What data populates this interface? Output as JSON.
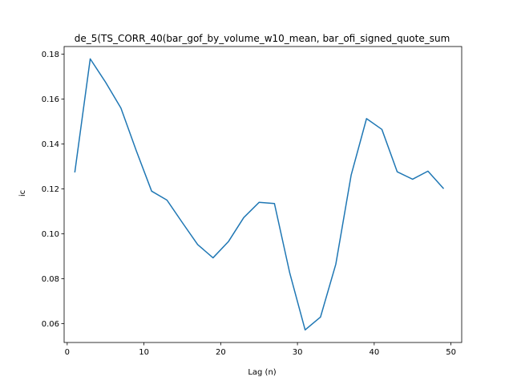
{
  "chart_data": {
    "type": "line",
    "title": "de_5(TS_CORR_40(bar_gof_by_volume_w10_mean, bar_ofi_signed_quote_sum",
    "xlabel": "Lag (n)",
    "ylabel": "ic",
    "xlim": [
      -0.4,
      51.4
    ],
    "ylim": [
      0.0516,
      0.1834
    ],
    "x_ticks": [
      0,
      10,
      20,
      30,
      40,
      50
    ],
    "y_ticks": [
      0.06,
      0.08,
      0.1,
      0.12,
      0.14,
      0.16,
      0.18
    ],
    "x_tick_labels": [
      "0",
      "10",
      "20",
      "30",
      "40",
      "50"
    ],
    "y_tick_labels": [
      "0.06",
      "0.08",
      "0.10",
      "0.12",
      "0.14",
      "0.16",
      "0.18"
    ],
    "grid": false,
    "line_color": "#1f77b4",
    "series": [
      {
        "x": [
          1,
          3,
          5,
          7,
          9,
          11,
          13,
          15,
          17,
          19,
          21,
          23,
          25,
          27,
          29,
          31,
          33,
          35,
          37,
          39,
          41,
          43,
          45,
          47,
          49
        ],
        "values": [
          0.1276,
          0.1779,
          0.1675,
          0.156,
          0.137,
          0.119,
          0.115,
          0.105,
          0.0952,
          0.0893,
          0.0965,
          0.1072,
          0.114,
          0.1135,
          0.0825,
          0.0572,
          0.0629,
          0.0865,
          0.1262,
          0.1513,
          0.1465,
          0.1276,
          0.1243,
          0.1279,
          0.1203
        ]
      }
    ]
  }
}
